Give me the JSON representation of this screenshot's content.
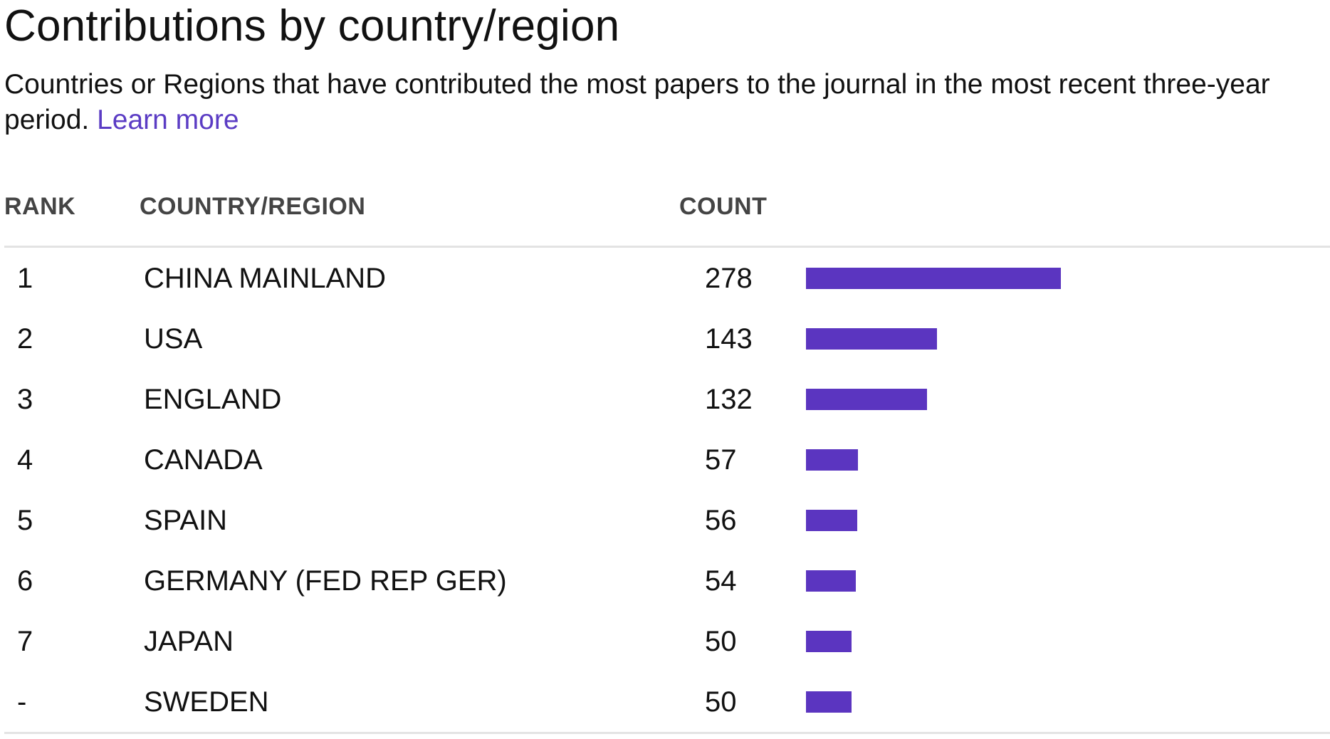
{
  "header": {
    "title": "Contributions by country/region",
    "subtitle": "Countries or Regions that have contributed the most papers to the journal in the most recent three-year period. ",
    "learn_more": "Learn more"
  },
  "table": {
    "columns": {
      "rank": "RANK",
      "country": "COUNTRY/REGION",
      "count": "COUNT"
    },
    "rows": [
      {
        "rank": "1",
        "country": "CHINA MAINLAND",
        "count": "278",
        "value": 278
      },
      {
        "rank": "2",
        "country": "USA",
        "count": "143",
        "value": 143
      },
      {
        "rank": "3",
        "country": "ENGLAND",
        "count": "132",
        "value": 132
      },
      {
        "rank": "4",
        "country": "CANADA",
        "count": "57",
        "value": 57
      },
      {
        "rank": "5",
        "country": "SPAIN",
        "count": "56",
        "value": 56
      },
      {
        "rank": "6",
        "country": "GERMANY (FED REP GER)",
        "count": "54",
        "value": 54
      },
      {
        "rank": "7",
        "country": "JAPAN",
        "count": "50",
        "value": 50
      },
      {
        "rank": "-",
        "country": "SWEDEN",
        "count": "50",
        "value": 50
      }
    ]
  },
  "colors": {
    "bar": "#5b35c0",
    "link": "#5b3cc4"
  }
}
